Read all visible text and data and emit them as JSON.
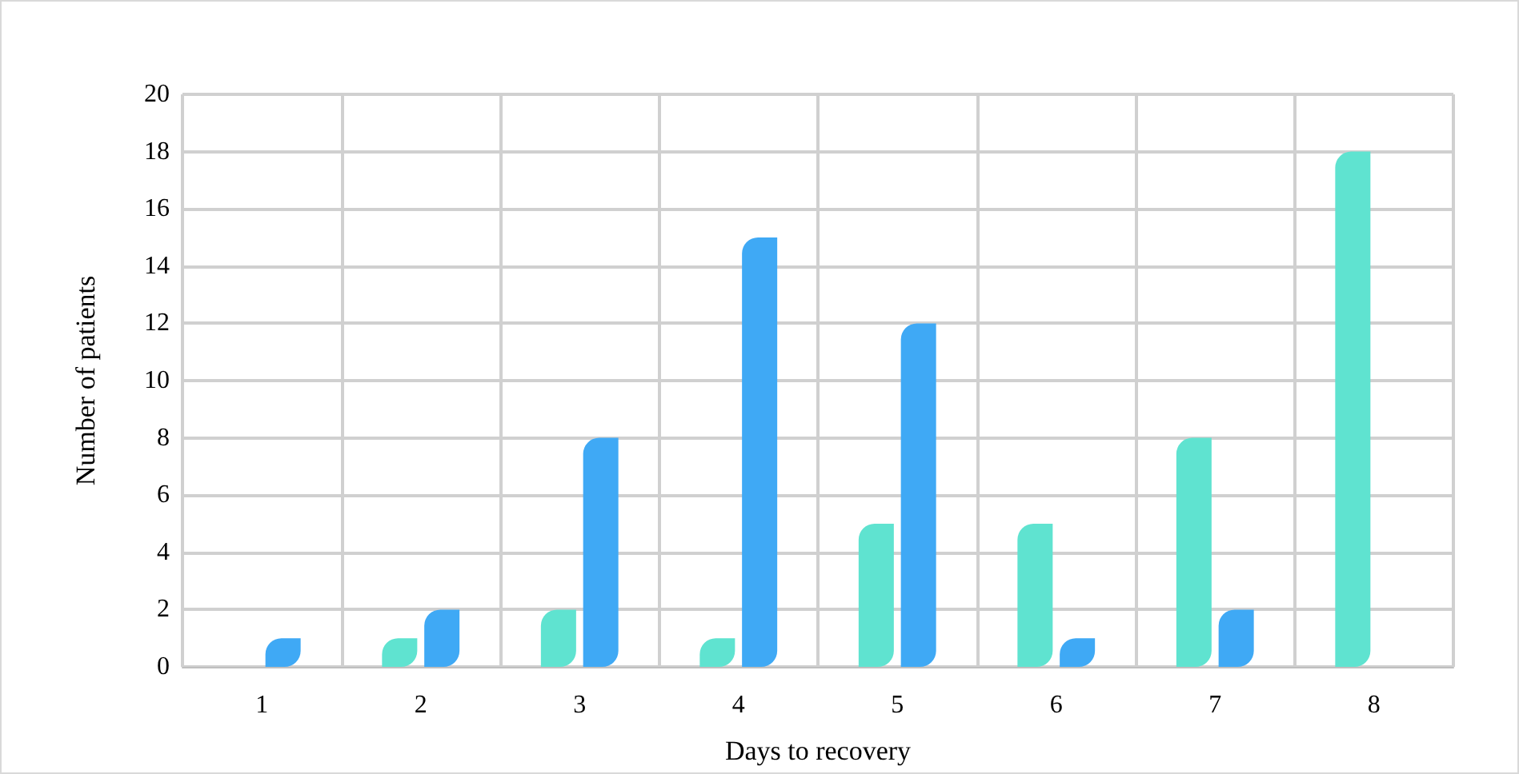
{
  "chart_data": {
    "type": "bar",
    "xlabel": "Days to recovery",
    "ylabel": "Number of patients",
    "categories": [
      "1",
      "2",
      "3",
      "4",
      "5",
      "6",
      "7",
      "8"
    ],
    "series": [
      {
        "color": "#5fe3d0",
        "values": [
          0,
          1,
          2,
          1,
          5,
          5,
          8,
          18
        ]
      },
      {
        "color": "#3fa9f5",
        "values": [
          1,
          2,
          8,
          15,
          12,
          1,
          2,
          0
        ]
      }
    ],
    "ylim": [
      0,
      20
    ],
    "yticks": [
      0,
      2,
      4,
      6,
      8,
      10,
      12,
      14,
      16,
      18,
      20
    ],
    "grid": true
  }
}
